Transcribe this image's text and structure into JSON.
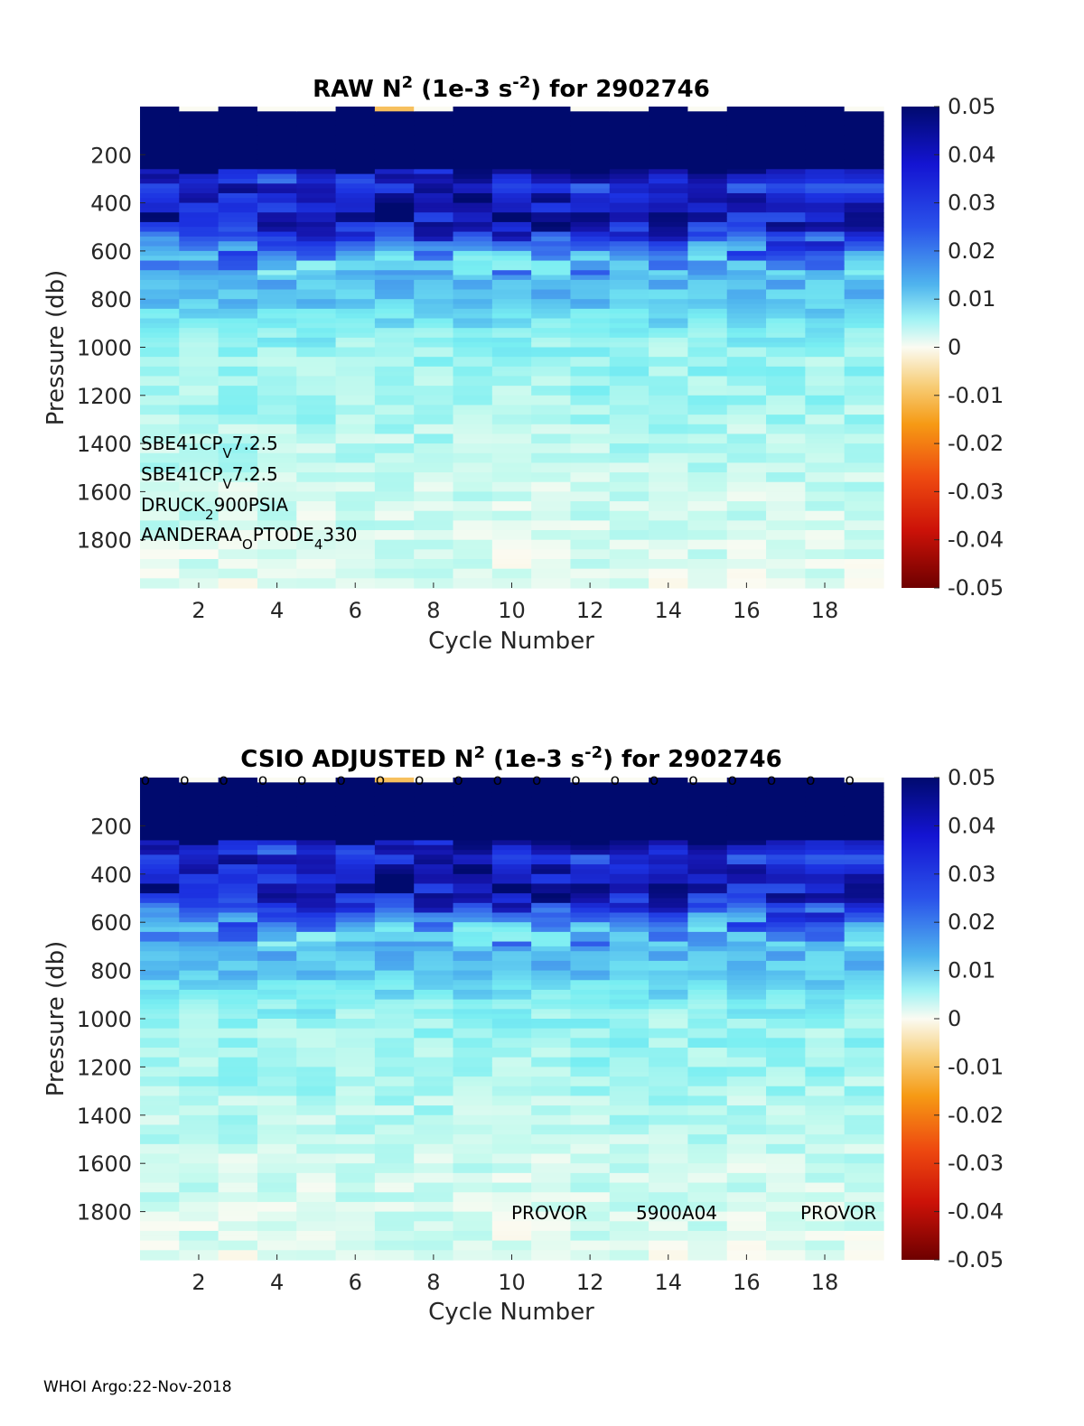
{
  "chart_data": [
    {
      "type": "heatmap",
      "title": "RAW N^2 (1e-3 s^-2) for 2902746",
      "title_parts": {
        "prefix": "RAW N",
        "sup1": "2",
        "mid": " (1e-3 s",
        "sup2": "-2",
        "suffix": ") for 2902746"
      },
      "xlabel": "Cycle Number",
      "ylabel": "Pressure (db)",
      "x_range": [
        1,
        19
      ],
      "y_range": [
        0,
        2000
      ],
      "x_ticks": [
        "2",
        "4",
        "6",
        "8",
        "10",
        "12",
        "14",
        "16",
        "18"
      ],
      "y_ticks": [
        "200",
        "400",
        "600",
        "800",
        "1000",
        "1200",
        "1400",
        "1600",
        "1800"
      ],
      "colorbar": {
        "range": [
          -0.05,
          0.05
        ],
        "tick_labels": [
          "0.05",
          "0.04",
          "0.03",
          "0.02",
          "0.01",
          "0",
          "-0.01",
          "-0.02",
          "-0.03",
          "-0.04",
          "-0.05"
        ]
      },
      "sensor_labels": [
        {
          "base": "SBE41CP",
          "sub": "V",
          "tail": "7.2.5"
        },
        {
          "base": "SBE41CP",
          "sub": "V",
          "tail": "7.2.5"
        },
        {
          "base": "DRUCK",
          "sub": "2",
          "tail": "900PSIA"
        },
        {
          "base": "AANDERAA",
          "sub": "O",
          "tail": "PTODE",
          "sub2": "4",
          "tail2": "330"
        }
      ],
      "value_profile_by_pressure": {
        "pressure": [
          50,
          250,
          300,
          400,
          500,
          560,
          650,
          800,
          1000,
          1200,
          1400,
          1600,
          1800,
          2000
        ],
        "mean_n2": [
          0.05,
          0.05,
          0.036,
          0.042,
          0.04,
          0.03,
          0.02,
          0.018,
          0.01,
          0.009,
          0.007,
          0.005,
          0.004,
          0.003
        ]
      }
    },
    {
      "type": "heatmap",
      "title": "CSIO ADJUSTED N^2 (1e-3 s^-2) for 2902746",
      "title_parts": {
        "prefix": "CSIO  ADJUSTED N",
        "sup1": "2",
        "mid": " (1e-3 s",
        "sup2": "-2",
        "suffix": ") for 2902746"
      },
      "xlabel": "Cycle Number",
      "ylabel": "Pressure (db)",
      "x_range": [
        1,
        19
      ],
      "y_range": [
        0,
        2000
      ],
      "x_ticks": [
        "2",
        "4",
        "6",
        "8",
        "10",
        "12",
        "14",
        "16",
        "18"
      ],
      "y_ticks": [
        "200",
        "400",
        "600",
        "800",
        "1000",
        "1200",
        "1400",
        "1600",
        "1800"
      ],
      "colorbar": {
        "range": [
          -0.05,
          0.05
        ],
        "tick_labels": [
          "0.05",
          "0.04",
          "0.03",
          "0.02",
          "0.01",
          "0",
          "-0.01",
          "-0.02",
          "-0.03",
          "-0.04",
          "-0.05"
        ]
      },
      "qc_markers": {
        "symbol": "o",
        "cycles": [
          1,
          2,
          3,
          4,
          5,
          6,
          7,
          8,
          9,
          10,
          11,
          12,
          13,
          14,
          15,
          16,
          17,
          18,
          19
        ]
      },
      "annotations": [
        {
          "text": "PROVOR",
          "cycle": 10
        },
        {
          "text": "5900A04",
          "cycle": 13.1
        },
        {
          "text": "PROVOR",
          "cycle": 17.1
        }
      ],
      "value_profile_by_pressure": {
        "pressure": [
          50,
          250,
          300,
          400,
          500,
          560,
          650,
          800,
          1000,
          1200,
          1400,
          1600,
          1800,
          2000
        ],
        "mean_n2": [
          0.05,
          0.05,
          0.036,
          0.042,
          0.04,
          0.03,
          0.02,
          0.018,
          0.01,
          0.009,
          0.007,
          0.005,
          0.004,
          0.003
        ]
      }
    }
  ],
  "footer": "WHOI Argo:22-Nov-2018"
}
